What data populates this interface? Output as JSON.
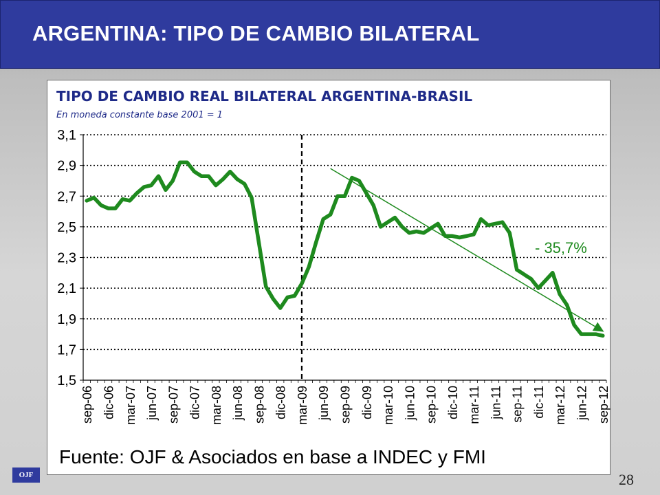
{
  "header": {
    "title": "ARGENTINA:  TIPO DE CAMBIO BILATERAL"
  },
  "footer": {
    "source": "Fuente: OJF & Asociados en base a INDEC y FMI",
    "logo_text": "OJF",
    "page_number": "28"
  },
  "colors": {
    "banner": "#2f3b9e",
    "title_text": "#1e2a88",
    "series_line": "#1e8a1e",
    "trend_line": "#1e8a1e"
  },
  "chart_data": {
    "type": "line",
    "title": "TIPO DE CAMBIO REAL BILATERAL ARGENTINA-BRASIL",
    "subtitle": "En moneda constante base 2001 = 1",
    "xlabel": "",
    "ylabel": "",
    "ylim": [
      1.5,
      3.1
    ],
    "yticks": [
      "1,5",
      "1,7",
      "1,9",
      "2,1",
      "2,3",
      "2,5",
      "2,7",
      "2,9",
      "3,1"
    ],
    "grid": "horizontal dotted",
    "x_tick_labels": [
      "sep-06",
      "dic-06",
      "mar-07",
      "jun-07",
      "sep-07",
      "dic-07",
      "mar-08",
      "jun-08",
      "sep-08",
      "dic-08",
      "mar-09",
      "jun-09",
      "sep-09",
      "dic-09",
      "mar-10",
      "jun-10",
      "sep-10",
      "dic-10",
      "mar-11",
      "jun-11",
      "sep-11",
      "dic-11",
      "mar-12",
      "jun-12",
      "sep-12"
    ],
    "x_start": "sep-06",
    "vertical_marker": {
      "at": "mar-09",
      "style": "dashed"
    },
    "series": [
      {
        "values": [
          2.67,
          2.69,
          2.64,
          2.62,
          2.62,
          2.68,
          2.67,
          2.72,
          2.76,
          2.77,
          2.83,
          2.74,
          2.8,
          2.92,
          2.92,
          2.86,
          2.83,
          2.83,
          2.77,
          2.81,
          2.86,
          2.81,
          2.78,
          2.69,
          2.4,
          2.11,
          2.03,
          1.97,
          2.04,
          2.05,
          2.13,
          2.24,
          2.4,
          2.55,
          2.58,
          2.7,
          2.7,
          2.82,
          2.8,
          2.72,
          2.64,
          2.5,
          2.53,
          2.56,
          2.5,
          2.46,
          2.47,
          2.46,
          2.49,
          2.52,
          2.44,
          2.44,
          2.43,
          2.44,
          2.45,
          2.55,
          2.51,
          2.52,
          2.53,
          2.46,
          2.22,
          2.19,
          2.16,
          2.1,
          2.15,
          2.2,
          2.06,
          1.99,
          1.86,
          1.8,
          1.8,
          1.8,
          1.79
        ]
      }
    ],
    "trend_line": {
      "from": "jul-09",
      "to": "sep-12",
      "y_start": 2.88,
      "y_end": 1.82
    },
    "annotations": [
      "- 35,7%"
    ]
  }
}
